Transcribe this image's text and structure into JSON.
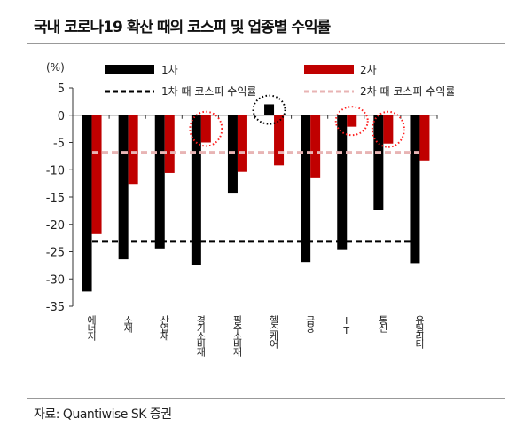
{
  "title": "국내 코로나19 확산 때의 코스피 및 업종별 수익률",
  "source": "자료: Quantiwise SK 증권",
  "chart_data": {
    "type": "bar",
    "ylabel": "(%)",
    "ylim": [
      -35,
      5
    ],
    "yticks": [
      5,
      0,
      -5,
      -10,
      -15,
      -20,
      -25,
      -30,
      -35
    ],
    "categories": [
      "에너지",
      "소재",
      "산업재",
      "경기소비재",
      "필수소비재",
      "헬스케어",
      "금융",
      "IT",
      "통신",
      "유틸리티"
    ],
    "series": [
      {
        "name": "1차",
        "color": "#000000",
        "values": [
          -32.3,
          -26.4,
          -24.4,
          -27.5,
          -14.2,
          2.0,
          -26.9,
          -24.7,
          -17.3,
          -27.1
        ]
      },
      {
        "name": "2차",
        "color": "#c00000",
        "values": [
          -21.8,
          -12.6,
          -10.6,
          -5.0,
          -10.4,
          -9.2,
          -11.4,
          -2.1,
          -5.2,
          -8.3
        ]
      }
    ],
    "reference_lines": [
      {
        "name": "1차 때 코스피 수익률",
        "value": -23.1,
        "color": "#000000",
        "style": "dashed"
      },
      {
        "name": "2차 때 코스피 수익률",
        "value": -6.8,
        "color": "#e8b4b4",
        "style": "dashed"
      }
    ],
    "highlights": [
      {
        "category": "경기소비재",
        "series": "2차",
        "color": "#ff2020"
      },
      {
        "category": "헬스케어",
        "series": "1차",
        "color": "#000000"
      },
      {
        "category": "IT",
        "series": "2차",
        "color": "#ff2020"
      },
      {
        "category": "통신",
        "series": "2차",
        "color": "#ff2020"
      }
    ],
    "legend": "top",
    "grid": false
  }
}
